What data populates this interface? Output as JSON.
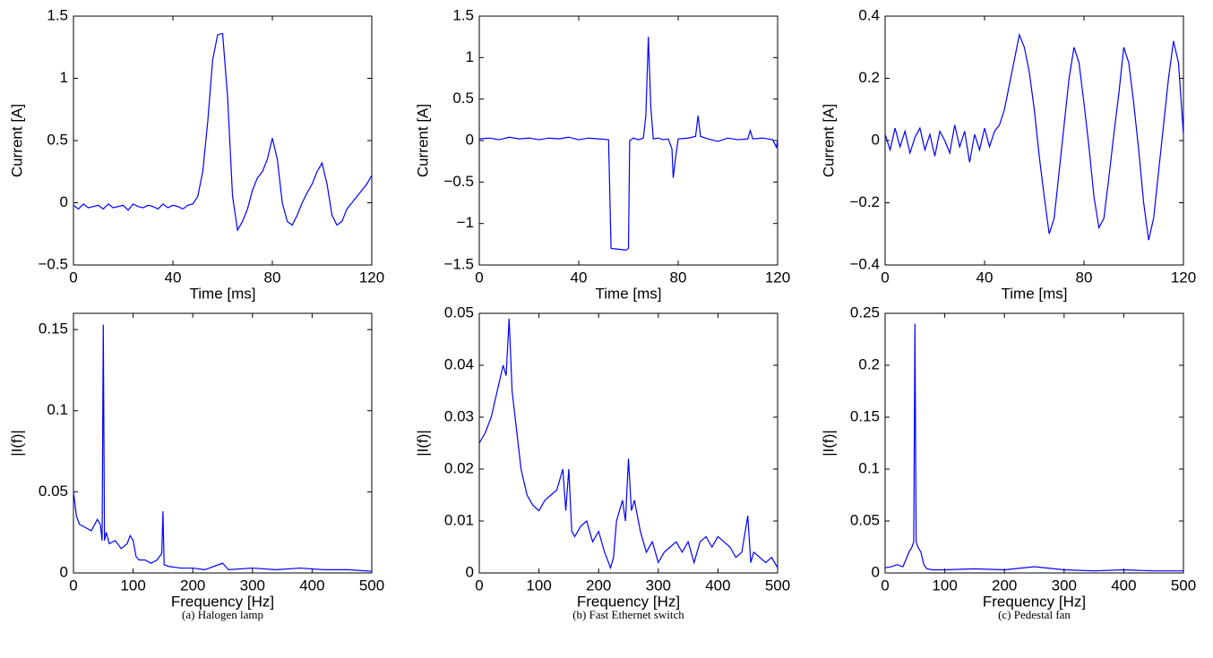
{
  "chart_data": [
    {
      "type": "line",
      "xlabel": "Time [ms]",
      "ylabel": "Current [A]",
      "color": "#0000ff",
      "xlim": [
        0,
        120
      ],
      "xticks": [
        0,
        40,
        80,
        120
      ],
      "ylim": [
        -0.5,
        1.5
      ],
      "yticks": [
        {
          "value": -0.5,
          "label": "−0.5"
        },
        0,
        0.5,
        1,
        1.5
      ],
      "x": [
        0,
        2,
        4,
        6,
        8,
        10,
        12,
        14,
        16,
        18,
        20,
        22,
        24,
        26,
        28,
        30,
        32,
        34,
        36,
        38,
        40,
        42,
        44,
        46,
        48,
        50,
        52,
        54,
        56,
        58,
        60,
        62,
        64,
        66,
        68,
        70,
        72,
        74,
        76,
        78,
        80,
        82,
        84,
        86,
        88,
        90,
        92,
        94,
        96,
        98,
        100,
        102,
        104,
        106,
        108,
        110,
        112,
        114,
        116,
        118,
        120
      ],
      "values": [
        -0.02,
        -0.05,
        -0.01,
        -0.04,
        -0.03,
        -0.02,
        -0.05,
        -0.01,
        -0.04,
        -0.03,
        -0.02,
        -0.06,
        -0.01,
        -0.03,
        -0.04,
        -0.02,
        -0.03,
        -0.05,
        -0.01,
        -0.04,
        -0.02,
        -0.03,
        -0.05,
        -0.02,
        -0.01,
        0.05,
        0.25,
        0.65,
        1.15,
        1.35,
        1.36,
        0.85,
        0.05,
        -0.22,
        -0.15,
        -0.05,
        0.1,
        0.2,
        0.25,
        0.35,
        0.52,
        0.35,
        0.0,
        -0.15,
        -0.18,
        -0.1,
        0.0,
        0.08,
        0.15,
        0.25,
        0.32,
        0.15,
        -0.1,
        -0.18,
        -0.15,
        -0.05,
        0.0,
        0.05,
        0.1,
        0.15,
        0.22
      ]
    },
    {
      "type": "line",
      "xlabel": "Time [ms]",
      "ylabel": "Current [A]",
      "color": "#0000ff",
      "xlim": [
        0,
        120
      ],
      "xticks": [
        0,
        40,
        80,
        120
      ],
      "ylim": [
        -1.5,
        1.5
      ],
      "yticks": [
        {
          "value": -1.5,
          "label": "−1.5"
        },
        {
          "value": -1,
          "label": "−1"
        },
        {
          "value": -0.5,
          "label": "−0.5"
        },
        0,
        0.5,
        1,
        1.5
      ],
      "x": [
        0,
        4,
        8,
        12,
        16,
        20,
        24,
        28,
        32,
        36,
        40,
        44,
        48,
        52,
        53,
        56,
        59,
        60,
        60.5,
        62,
        64,
        66,
        67,
        68,
        69,
        70,
        72,
        74,
        76,
        77.5,
        78,
        79,
        80,
        84,
        87,
        88,
        89,
        92,
        96,
        100,
        104,
        108,
        109,
        110,
        114,
        118,
        119.5,
        120
      ],
      "values": [
        0.02,
        0.03,
        0.01,
        0.04,
        0.02,
        0.03,
        0.01,
        0.03,
        0.02,
        0.04,
        0.01,
        0.03,
        0.02,
        0.01,
        -1.3,
        -1.31,
        -1.32,
        -1.3,
        0.0,
        0.03,
        0.01,
        0.03,
        0.3,
        1.25,
        0.4,
        0.02,
        0.03,
        0.01,
        0.02,
        -0.1,
        -0.45,
        -0.2,
        0.02,
        0.03,
        0.05,
        0.3,
        0.05,
        0.02,
        -0.01,
        0.03,
        0.01,
        0.02,
        0.12,
        0.02,
        0.03,
        0.01,
        -0.08,
        0.0
      ]
    },
    {
      "type": "line",
      "xlabel": "Time [ms]",
      "ylabel": "Current [A]",
      "color": "#0000ff",
      "xlim": [
        0,
        120
      ],
      "xticks": [
        0,
        40,
        80,
        120
      ],
      "ylim": [
        -0.4,
        0.4
      ],
      "yticks": [
        {
          "value": -0.4,
          "label": "−0.4"
        },
        {
          "value": -0.2,
          "label": "−0.2"
        },
        0,
        0.2,
        0.4
      ],
      "x": [
        0,
        2,
        4,
        6,
        8,
        10,
        12,
        14,
        16,
        18,
        20,
        22,
        24,
        26,
        28,
        30,
        32,
        34,
        36,
        38,
        40,
        42,
        44,
        46,
        48,
        50,
        52,
        54,
        56,
        58,
        60,
        62,
        64,
        66,
        68,
        70,
        72,
        74,
        76,
        78,
        80,
        82,
        84,
        86,
        88,
        90,
        92,
        94,
        96,
        98,
        100,
        102,
        104,
        106,
        108,
        110,
        112,
        114,
        116,
        118,
        120
      ],
      "values": [
        0.02,
        -0.03,
        0.04,
        -0.02,
        0.03,
        -0.04,
        0.01,
        0.04,
        -0.03,
        0.02,
        -0.05,
        0.03,
        0.0,
        -0.04,
        0.05,
        -0.02,
        0.03,
        -0.07,
        0.02,
        -0.03,
        0.04,
        -0.02,
        0.03,
        0.05,
        0.1,
        0.18,
        0.26,
        0.34,
        0.3,
        0.22,
        0.1,
        -0.05,
        -0.18,
        -0.3,
        -0.25,
        -0.1,
        0.05,
        0.2,
        0.3,
        0.25,
        0.12,
        -0.02,
        -0.18,
        -0.28,
        -0.25,
        -0.12,
        0.02,
        0.15,
        0.3,
        0.25,
        0.12,
        -0.03,
        -0.2,
        -0.32,
        -0.25,
        -0.1,
        0.05,
        0.2,
        0.32,
        0.25,
        0.02
      ]
    },
    {
      "type": "line",
      "xlabel": "Frequency [Hz]",
      "ylabel": "|I(f)|",
      "color": "#0000ff",
      "xlim": [
        0,
        500
      ],
      "xticks": [
        0,
        100,
        200,
        300,
        400,
        500
      ],
      "ylim": [
        0,
        0.16
      ],
      "yticks": [
        0,
        0.05,
        0.1,
        0.15
      ],
      "x": [
        0,
        5,
        10,
        20,
        30,
        40,
        45,
        48,
        50,
        52,
        55,
        60,
        70,
        80,
        90,
        95,
        100,
        105,
        110,
        120,
        130,
        140,
        148,
        150,
        152,
        160,
        180,
        200,
        220,
        250,
        260,
        300,
        340,
        380,
        420,
        460,
        500
      ],
      "values": [
        0.05,
        0.035,
        0.03,
        0.028,
        0.026,
        0.033,
        0.03,
        0.02,
        0.153,
        0.02,
        0.025,
        0.018,
        0.02,
        0.015,
        0.018,
        0.023,
        0.02,
        0.01,
        0.008,
        0.008,
        0.006,
        0.008,
        0.012,
        0.038,
        0.005,
        0.004,
        0.003,
        0.003,
        0.002,
        0.006,
        0.002,
        0.003,
        0.002,
        0.003,
        0.002,
        0.002,
        0.001
      ]
    },
    {
      "type": "line",
      "xlabel": "Frequency [Hz]",
      "ylabel": "|I(f)|",
      "color": "#0000ff",
      "xlim": [
        0,
        500
      ],
      "xticks": [
        0,
        100,
        200,
        300,
        400,
        500
      ],
      "ylim": [
        0,
        0.05
      ],
      "yticks": [
        0,
        0.01,
        0.02,
        0.03,
        0.04,
        0.05
      ],
      "x": [
        0,
        10,
        20,
        30,
        40,
        45,
        50,
        55,
        60,
        70,
        80,
        90,
        100,
        110,
        120,
        130,
        140,
        145,
        150,
        155,
        160,
        170,
        180,
        190,
        200,
        210,
        220,
        225,
        230,
        240,
        245,
        250,
        255,
        260,
        270,
        280,
        290,
        300,
        310,
        320,
        330,
        340,
        350,
        360,
        370,
        380,
        390,
        400,
        410,
        420,
        430,
        440,
        450,
        455,
        460,
        470,
        480,
        490,
        500
      ],
      "values": [
        0.025,
        0.027,
        0.03,
        0.035,
        0.04,
        0.038,
        0.049,
        0.035,
        0.03,
        0.02,
        0.015,
        0.013,
        0.012,
        0.014,
        0.015,
        0.016,
        0.02,
        0.012,
        0.02,
        0.008,
        0.007,
        0.009,
        0.01,
        0.006,
        0.008,
        0.004,
        0.001,
        0.003,
        0.01,
        0.014,
        0.01,
        0.022,
        0.012,
        0.014,
        0.008,
        0.004,
        0.006,
        0.002,
        0.004,
        0.005,
        0.006,
        0.004,
        0.006,
        0.002,
        0.006,
        0.007,
        0.005,
        0.007,
        0.006,
        0.005,
        0.003,
        0.004,
        0.011,
        0.002,
        0.004,
        0.003,
        0.002,
        0.003,
        0.001
      ]
    },
    {
      "type": "line",
      "xlabel": "Frequency [Hz]",
      "ylabel": "|I(f)|",
      "color": "#0000ff",
      "xlim": [
        0,
        500
      ],
      "xticks": [
        0,
        100,
        200,
        300,
        400,
        500
      ],
      "ylim": [
        0,
        0.25
      ],
      "yticks": [
        0,
        0.05,
        0.1,
        0.15,
        0.2,
        0.25
      ],
      "x": [
        0,
        10,
        20,
        30,
        40,
        45,
        48,
        50,
        52,
        55,
        60,
        65,
        70,
        80,
        100,
        150,
        200,
        250,
        300,
        350,
        400,
        450,
        500
      ],
      "values": [
        0.005,
        0.006,
        0.008,
        0.006,
        0.02,
        0.025,
        0.03,
        0.24,
        0.03,
        0.025,
        0.02,
        0.008,
        0.004,
        0.003,
        0.003,
        0.004,
        0.003,
        0.006,
        0.003,
        0.002,
        0.003,
        0.002,
        0.002
      ]
    }
  ],
  "captions": [
    "(a) Halogen lamp",
    "(b) Fast Ethernet switch",
    "(c) Pedestal fan"
  ]
}
